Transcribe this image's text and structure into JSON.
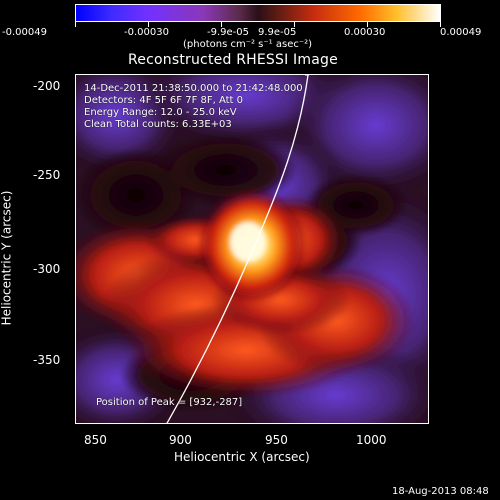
{
  "colorbar": {
    "tick_labels": [
      "-0.00049",
      "-0.00030",
      "-9.9e-05",
      "9.9e-05",
      "0.00030",
      "0.00049"
    ],
    "units_label": "(photons cm⁻² s⁻¹ asec⁻²)"
  },
  "plot": {
    "title": "Reconstructed RHESSI Image",
    "xlabel": "Heliocentric X (arcsec)",
    "ylabel": "Heliocentric Y (arcsec)",
    "x_ticks": [
      "850",
      "900",
      "950",
      "1000"
    ],
    "y_ticks": [
      "-200",
      "-250",
      "-300",
      "-350"
    ],
    "overlay": {
      "line1": "14-Dec-2011 21:38:50.000 to 21:42:48.000",
      "line2": "Detectors: 4F 5F 6F 7F 8F, Att 0",
      "line3": "Energy Range: 12.0 - 25.0 keV",
      "line4": "Clean    Total counts: 6.33E+03",
      "peak_position": "Position of Peak = [932,-287]"
    }
  },
  "footer": {
    "timestamp": "18-Aug-2013 08:48"
  }
}
